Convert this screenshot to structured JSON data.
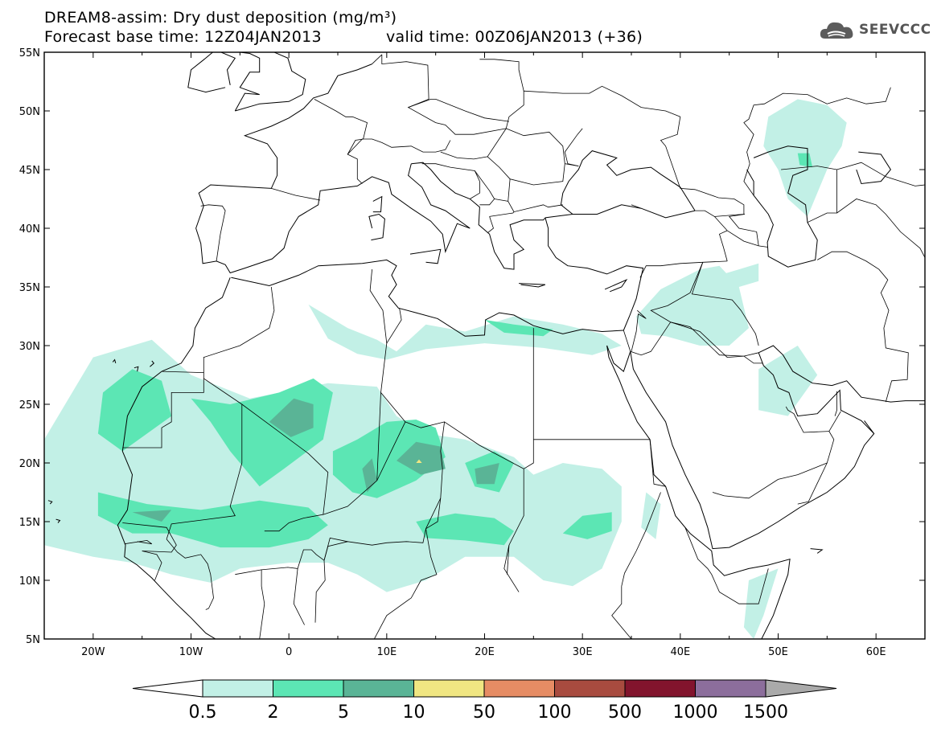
{
  "header": {
    "title": "DREAM8-assim: Dry dust deposition (mg/m³)",
    "base_time": "Forecast base time: 12Z04JAN2013",
    "valid_time": "valid time: 00Z06JAN2013 (+36)",
    "logo_text": "SEEVCCC",
    "logo_icon": "cloud-icon"
  },
  "map": {
    "lon_labels": [
      "20W",
      "10W",
      "0",
      "10E",
      "20E",
      "30E",
      "40E",
      "50E",
      "60E"
    ],
    "lat_labels": [
      "55N",
      "50N",
      "45N",
      "40N",
      "35N",
      "30N",
      "25N",
      "20N",
      "15N",
      "10N",
      "5N"
    ],
    "lon_range": [
      -25,
      65
    ],
    "lat_range": [
      5,
      55
    ]
  },
  "colorbar": {
    "labels": [
      "0.5",
      "2",
      "5",
      "10",
      "50",
      "100",
      "500",
      "1000",
      "1500"
    ],
    "colors": [
      "#c2f0e6",
      "#5ce6b4",
      "#5ab496",
      "#f0e682",
      "#e68c64",
      "#a84b3f",
      "#82142d",
      "#8c6e9c",
      "#aaaaaa"
    ],
    "left_arrow_color": "#ffffff"
  },
  "dust_regions": [
    {
      "level": 1,
      "points": [
        [
          -25,
          22
        ],
        [
          -20,
          29
        ],
        [
          -14,
          30.5
        ],
        [
          -10,
          27.5
        ],
        [
          -4,
          25.5
        ],
        [
          4,
          26.8
        ],
        [
          9,
          26.5
        ],
        [
          11,
          24
        ],
        [
          14,
          22.5
        ],
        [
          18,
          22
        ],
        [
          23,
          20.5
        ],
        [
          25,
          19
        ],
        [
          28,
          20
        ],
        [
          32,
          19.5
        ],
        [
          34,
          18
        ],
        [
          34,
          15
        ],
        [
          32,
          11
        ],
        [
          29,
          9.5
        ],
        [
          26,
          10
        ],
        [
          23,
          12
        ],
        [
          18,
          12
        ],
        [
          14,
          10
        ],
        [
          10,
          9
        ],
        [
          7,
          10.5
        ],
        [
          4,
          11.5
        ],
        [
          0,
          11.5
        ],
        [
          -5,
          11
        ],
        [
          -8,
          9.8
        ],
        [
          -12,
          10.5
        ],
        [
          -16,
          11.5
        ],
        [
          -20,
          12
        ],
        [
          -25,
          13
        ]
      ]
    },
    {
      "level": 1,
      "points": [
        [
          2,
          33.5
        ],
        [
          6,
          31.5
        ],
        [
          9,
          30.5
        ],
        [
          11,
          29.5
        ],
        [
          14,
          31.8
        ],
        [
          18,
          31.2
        ],
        [
          23,
          32.5
        ],
        [
          28,
          31.8
        ],
        [
          32,
          31
        ],
        [
          34,
          30
        ],
        [
          31,
          29.2
        ],
        [
          26,
          29.8
        ],
        [
          20,
          30.2
        ],
        [
          14,
          29.7
        ],
        [
          10,
          28.8
        ],
        [
          7,
          29.3
        ],
        [
          4,
          30.6
        ]
      ]
    },
    {
      "level": 1,
      "points": [
        [
          35.5,
          32.5
        ],
        [
          38,
          34.8
        ],
        [
          42,
          36.5
        ],
        [
          44,
          36.8
        ],
        [
          46,
          35
        ],
        [
          47,
          31.5
        ],
        [
          45,
          30
        ],
        [
          42,
          30
        ],
        [
          38.5,
          30.8
        ],
        [
          36,
          31
        ]
      ]
    },
    {
      "level": 1,
      "points": [
        [
          42,
          35.5
        ],
        [
          46,
          36.5
        ],
        [
          48,
          37
        ],
        [
          48,
          35.5
        ],
        [
          44,
          34.5
        ]
      ]
    },
    {
      "level": 1,
      "points": [
        [
          48,
          28
        ],
        [
          52,
          30
        ],
        [
          54,
          27.5
        ],
        [
          51,
          24
        ],
        [
          48,
          24.5
        ]
      ]
    },
    {
      "level": 1,
      "points": [
        [
          49,
          49.5
        ],
        [
          52,
          51
        ],
        [
          55,
          50.5
        ],
        [
          57,
          49
        ],
        [
          56.5,
          47
        ],
        [
          55,
          45
        ],
        [
          53,
          41
        ],
        [
          51,
          42.5
        ],
        [
          50,
          45
        ],
        [
          48.5,
          47
        ]
      ]
    },
    {
      "level": 1,
      "points": [
        [
          47,
          10
        ],
        [
          50,
          11
        ],
        [
          48.5,
          7
        ],
        [
          47.5,
          5
        ],
        [
          46.5,
          6
        ]
      ]
    },
    {
      "level": 1,
      "points": [
        [
          36.5,
          17.5
        ],
        [
          38,
          16.5
        ],
        [
          37.5,
          13.5
        ],
        [
          36,
          14.5
        ]
      ]
    },
    {
      "level": 2,
      "points": [
        [
          -19,
          26
        ],
        [
          -16,
          28
        ],
        [
          -13,
          27
        ],
        [
          -12,
          24
        ],
        [
          -17,
          21
        ],
        [
          -19.5,
          22.5
        ]
      ]
    },
    {
      "level": 2,
      "points": [
        [
          -10,
          25.5
        ],
        [
          -6,
          25
        ],
        [
          -1,
          26
        ],
        [
          2.5,
          27.2
        ],
        [
          4.5,
          26
        ],
        [
          3.5,
          22
        ],
        [
          -0.5,
          19.5
        ],
        [
          -3,
          18
        ],
        [
          -6,
          21
        ],
        [
          -8,
          23.5
        ]
      ]
    },
    {
      "level": 2,
      "points": [
        [
          4.5,
          21
        ],
        [
          7,
          22
        ],
        [
          10,
          23.5
        ],
        [
          13,
          23.7
        ],
        [
          15,
          23
        ],
        [
          16,
          20.5
        ],
        [
          13,
          18.5
        ],
        [
          9,
          17
        ],
        [
          6.5,
          17.5
        ],
        [
          4.5,
          19
        ]
      ]
    },
    {
      "level": 2,
      "points": [
        [
          -19.5,
          17.5
        ],
        [
          -14.5,
          16.5
        ],
        [
          -9,
          16
        ],
        [
          -3,
          16.8
        ],
        [
          2,
          16.2
        ],
        [
          4,
          14.7
        ],
        [
          2,
          13.5
        ],
        [
          -2,
          12.8
        ],
        [
          -7,
          12.8
        ],
        [
          -12,
          14
        ],
        [
          -16,
          14
        ],
        [
          -19.5,
          15.5
        ]
      ]
    },
    {
      "level": 2,
      "points": [
        [
          18,
          20
        ],
        [
          21,
          21
        ],
        [
          23,
          20
        ],
        [
          21.5,
          17.5
        ],
        [
          19,
          18
        ]
      ]
    },
    {
      "level": 2,
      "points": [
        [
          13,
          15
        ],
        [
          17,
          15.7
        ],
        [
          21,
          15.3
        ],
        [
          23,
          14.2
        ],
        [
          22,
          13
        ],
        [
          18,
          13.4
        ],
        [
          14,
          13.6
        ]
      ]
    },
    {
      "level": 2,
      "points": [
        [
          30,
          15.5
        ],
        [
          33,
          15.8
        ],
        [
          33,
          14.2
        ],
        [
          30.5,
          13.5
        ],
        [
          28,
          14
        ]
      ]
    },
    {
      "level": 2,
      "points": [
        [
          20,
          32.2
        ],
        [
          23,
          31.8
        ],
        [
          27,
          31.4
        ],
        [
          26,
          30.8
        ],
        [
          22,
          31.1
        ]
      ]
    },
    {
      "level": 2,
      "points": [
        [
          52,
          46.4
        ],
        [
          53.2,
          46.4
        ],
        [
          53.5,
          45.2
        ],
        [
          52.2,
          45.4
        ]
      ]
    },
    {
      "level": 3,
      "points": [
        [
          -2,
          23.5
        ],
        [
          0.5,
          25.5
        ],
        [
          2.5,
          25
        ],
        [
          2.5,
          23
        ],
        [
          0.2,
          22.2
        ]
      ]
    },
    {
      "level": 3,
      "points": [
        [
          7.5,
          19.5
        ],
        [
          8.5,
          20.4
        ],
        [
          9,
          18.5
        ],
        [
          8,
          17.5
        ]
      ]
    },
    {
      "level": 3,
      "points": [
        [
          11,
          20.2
        ],
        [
          13,
          21.8
        ],
        [
          15.5,
          21.4
        ],
        [
          16,
          19.5
        ],
        [
          13.5,
          19
        ]
      ]
    },
    {
      "level": 3,
      "points": [
        [
          19,
          19.5
        ],
        [
          21.5,
          20
        ],
        [
          21,
          18.2
        ],
        [
          19.2,
          18.2
        ]
      ]
    },
    {
      "level": 3,
      "points": [
        [
          -16,
          15.8
        ],
        [
          -12,
          16
        ],
        [
          -13,
          15
        ]
      ]
    },
    {
      "level": 4,
      "points": [
        [
          13,
          20
        ],
        [
          13.3,
          20.3
        ],
        [
          13.6,
          20
        ]
      ]
    }
  ]
}
